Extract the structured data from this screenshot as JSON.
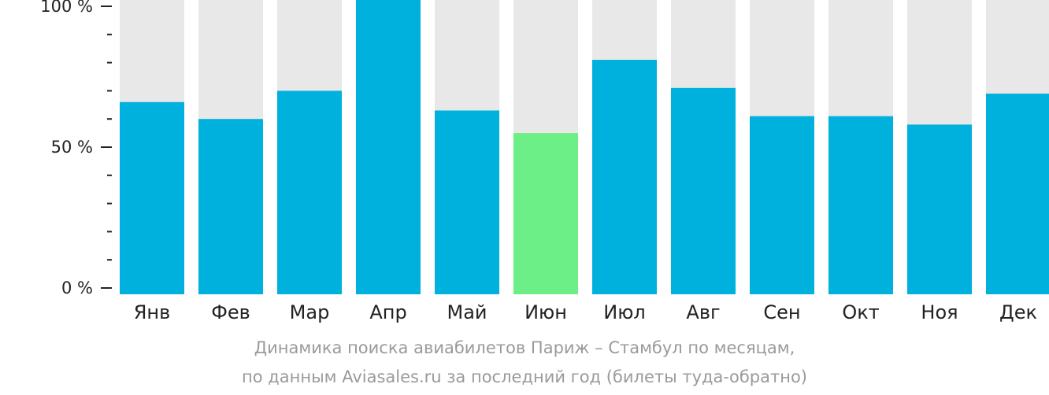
{
  "chart_data": {
    "type": "bar",
    "categories": [
      "Янв",
      "Фев",
      "Мар",
      "Апр",
      "Май",
      "Июн",
      "Июл",
      "Авг",
      "Сен",
      "Окт",
      "Ноя",
      "Дек"
    ],
    "values": [
      66,
      60,
      70,
      105,
      63,
      55,
      81,
      71,
      61,
      61,
      58,
      69
    ],
    "ylim": [
      0,
      100
    ],
    "y_ticks": [
      {
        "value": 100,
        "label": "100 %"
      },
      {
        "value": 50,
        "label": "50 %"
      },
      {
        "value": 0,
        "label": "0 %"
      }
    ],
    "y_minor_ticks": [
      90,
      80,
      70,
      60,
      40,
      30,
      20,
      10
    ],
    "highlight_index": 5,
    "colors": {
      "bar": "#00b0dd",
      "highlight": "#6bef86",
      "background_bar": "#e8e8e8",
      "axis": "#222222"
    }
  },
  "caption": {
    "line1": "Динамика поиска авиабилетов Париж – Стамбул по месяцам,",
    "line2": "по данным Aviasales.ru за последний год (билеты туда-обратно)"
  }
}
